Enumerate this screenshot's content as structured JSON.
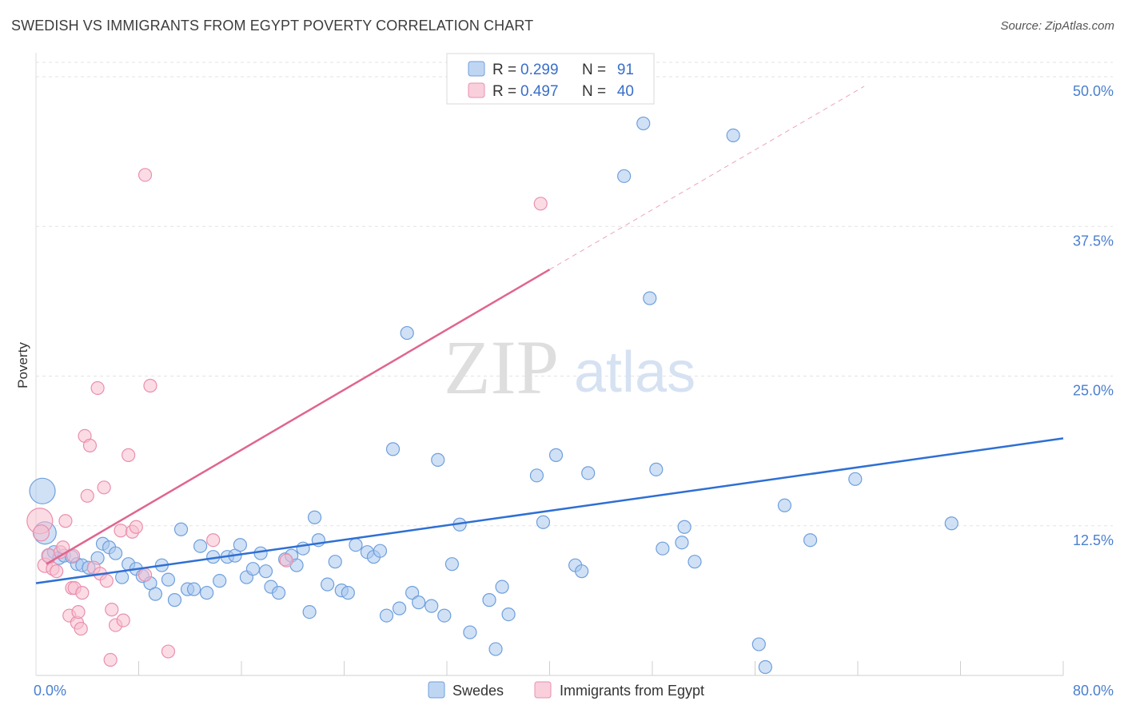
{
  "title": "SWEDISH VS IMMIGRANTS FROM EGYPT POVERTY CORRELATION CHART",
  "source": "Source: ZipAtlas.com",
  "watermark": {
    "zip": "ZIP",
    "atlas": "atlas"
  },
  "colors": {
    "swedes_fill": "#a9c8ef",
    "swedes_stroke": "#6f9fdc",
    "swedes_line": "#2e6fd4",
    "egypt_fill": "#f7bfd0",
    "egypt_stroke": "#ea8fae",
    "egypt_line": "#e0658f",
    "grid": "#e3e3e3",
    "tick_label": "#4a7fcf"
  },
  "legend": {
    "rows": [
      {
        "r_label": "R =",
        "r_value": "0.299",
        "n_label": "N =",
        "n_value": "91"
      },
      {
        "r_label": "R =",
        "r_value": "0.497",
        "n_label": "N =",
        "n_value": "40"
      }
    ]
  },
  "chart_data": {
    "type": "scatter",
    "ylabel": "Poverty",
    "x_tick_labels": [
      "0.0%",
      "80.0%"
    ],
    "y_tick_labels": [
      "12.5%",
      "25.0%",
      "37.5%",
      "50.0%"
    ],
    "y_ticks": [
      12.5,
      25.0,
      37.5,
      50.0
    ],
    "xlim": [
      0,
      80
    ],
    "ylim": [
      0,
      50
    ],
    "legend_position": "top-center",
    "grid": true,
    "series": [
      {
        "name": "Swedes",
        "trend": {
          "x": [
            0,
            80
          ],
          "y": [
            7.7,
            19.8
          ],
          "dashed_extension": false
        },
        "points": [
          [
            0.5,
            15.4,
            16
          ],
          [
            0.7,
            11.9,
            14
          ],
          [
            1.0,
            10.0,
            8
          ],
          [
            1.4,
            10.3,
            8
          ],
          [
            1.8,
            9.8,
            8
          ],
          [
            2.2,
            10.0,
            8
          ],
          [
            2.8,
            9.9,
            8
          ],
          [
            3.2,
            9.3,
            8
          ],
          [
            3.6,
            9.2,
            8
          ],
          [
            4.1,
            9.0,
            8
          ],
          [
            4.8,
            9.8,
            8
          ],
          [
            5.2,
            11.0,
            8
          ],
          [
            5.7,
            10.7,
            8
          ],
          [
            6.2,
            10.2,
            8
          ],
          [
            6.7,
            8.2,
            8
          ],
          [
            7.2,
            9.3,
            8
          ],
          [
            7.8,
            8.9,
            8
          ],
          [
            8.3,
            8.3,
            8
          ],
          [
            8.9,
            7.7,
            8
          ],
          [
            9.3,
            6.8,
            8
          ],
          [
            9.8,
            9.2,
            8
          ],
          [
            10.3,
            8.0,
            8
          ],
          [
            10.8,
            6.3,
            8
          ],
          [
            11.3,
            12.2,
            8
          ],
          [
            11.8,
            7.2,
            8
          ],
          [
            12.3,
            7.2,
            8
          ],
          [
            12.8,
            10.8,
            8
          ],
          [
            13.3,
            6.9,
            8
          ],
          [
            13.8,
            9.9,
            8
          ],
          [
            14.3,
            7.9,
            8
          ],
          [
            14.9,
            9.9,
            8
          ],
          [
            15.5,
            10.0,
            8
          ],
          [
            15.9,
            10.9,
            8
          ],
          [
            16.4,
            8.2,
            8
          ],
          [
            16.9,
            8.9,
            8
          ],
          [
            17.5,
            10.2,
            8
          ],
          [
            17.9,
            8.7,
            8
          ],
          [
            18.3,
            7.4,
            8
          ],
          [
            18.9,
            6.9,
            8
          ],
          [
            19.4,
            9.7,
            8
          ],
          [
            19.9,
            10.0,
            8
          ],
          [
            20.3,
            9.2,
            8
          ],
          [
            20.8,
            10.6,
            8
          ],
          [
            21.3,
            5.3,
            8
          ],
          [
            21.7,
            13.2,
            8
          ],
          [
            22.0,
            11.3,
            8
          ],
          [
            22.7,
            7.6,
            8
          ],
          [
            23.3,
            9.5,
            8
          ],
          [
            23.8,
            7.1,
            8
          ],
          [
            24.3,
            6.9,
            8
          ],
          [
            24.9,
            10.9,
            8
          ],
          [
            25.8,
            10.3,
            8
          ],
          [
            26.3,
            9.9,
            8
          ],
          [
            26.8,
            10.4,
            8
          ],
          [
            27.3,
            5.0,
            8
          ],
          [
            27.8,
            18.9,
            8
          ],
          [
            28.3,
            5.6,
            8
          ],
          [
            28.9,
            28.6,
            8
          ],
          [
            29.3,
            6.9,
            8
          ],
          [
            29.8,
            6.1,
            8
          ],
          [
            30.8,
            5.8,
            8
          ],
          [
            31.3,
            18.0,
            8
          ],
          [
            31.8,
            5.0,
            8
          ],
          [
            32.4,
            9.3,
            8
          ],
          [
            33.0,
            12.6,
            8
          ],
          [
            33.8,
            3.6,
            8
          ],
          [
            35.3,
            6.3,
            8
          ],
          [
            35.8,
            2.2,
            8
          ],
          [
            36.3,
            7.4,
            8
          ],
          [
            36.8,
            5.1,
            8
          ],
          [
            39.0,
            16.7,
            8
          ],
          [
            39.5,
            12.8,
            8
          ],
          [
            40.5,
            18.4,
            8
          ],
          [
            42.0,
            9.2,
            8
          ],
          [
            42.5,
            8.7,
            8
          ],
          [
            43.0,
            16.9,
            8
          ],
          [
            45.8,
            41.7,
            8
          ],
          [
            47.3,
            46.1,
            8
          ],
          [
            47.8,
            31.5,
            8
          ],
          [
            48.3,
            17.2,
            8
          ],
          [
            48.8,
            10.6,
            8
          ],
          [
            50.3,
            11.1,
            8
          ],
          [
            50.5,
            12.4,
            8
          ],
          [
            51.3,
            9.5,
            8
          ],
          [
            54.3,
            45.1,
            8
          ],
          [
            56.3,
            2.6,
            8
          ],
          [
            56.8,
            0.7,
            8
          ],
          [
            58.3,
            14.2,
            8
          ],
          [
            60.3,
            11.3,
            8
          ],
          [
            63.8,
            16.4,
            8
          ],
          [
            71.3,
            12.7,
            8
          ]
        ]
      },
      {
        "name": "Immigrants from Egypt",
        "trend": {
          "x": [
            0.8,
            40.0
          ],
          "y": [
            9.3,
            33.9
          ],
          "dashed_extension": {
            "x": [
              40.0,
              64.5
            ],
            "y": [
              33.9,
              49.2
            ]
          }
        },
        "points": [
          [
            0.3,
            12.9,
            16
          ],
          [
            0.4,
            11.9,
            10
          ],
          [
            0.7,
            9.2,
            9
          ],
          [
            1.0,
            10.0,
            9
          ],
          [
            1.3,
            8.9,
            8
          ],
          [
            1.6,
            8.7,
            8
          ],
          [
            1.9,
            10.3,
            8
          ],
          [
            2.1,
            10.7,
            8
          ],
          [
            2.3,
            12.9,
            8
          ],
          [
            2.6,
            5.0,
            8
          ],
          [
            2.8,
            7.3,
            8
          ],
          [
            3.0,
            7.3,
            8
          ],
          [
            3.2,
            4.4,
            8
          ],
          [
            3.3,
            5.3,
            8
          ],
          [
            3.5,
            3.9,
            8
          ],
          [
            3.6,
            6.9,
            8
          ],
          [
            3.8,
            20.0,
            8
          ],
          [
            4.0,
            15.0,
            8
          ],
          [
            4.2,
            19.2,
            8
          ],
          [
            4.5,
            9.0,
            8
          ],
          [
            4.8,
            24.0,
            8
          ],
          [
            5.0,
            8.5,
            8
          ],
          [
            5.3,
            15.7,
            8
          ],
          [
            5.5,
            7.9,
            8
          ],
          [
            5.8,
            1.3,
            8
          ],
          [
            5.9,
            5.5,
            8
          ],
          [
            6.2,
            4.2,
            8
          ],
          [
            6.6,
            12.1,
            8
          ],
          [
            6.8,
            4.6,
            8
          ],
          [
            7.2,
            18.4,
            8
          ],
          [
            7.5,
            12.0,
            8
          ],
          [
            7.8,
            12.4,
            8
          ],
          [
            8.5,
            8.4,
            8
          ],
          [
            8.5,
            41.8,
            8
          ],
          [
            8.9,
            24.2,
            8
          ],
          [
            10.3,
            2.0,
            8
          ],
          [
            13.8,
            11.3,
            8
          ],
          [
            19.5,
            9.6,
            8
          ],
          [
            39.3,
            39.4,
            8
          ],
          [
            2.9,
            10.0,
            8
          ]
        ]
      }
    ]
  },
  "bottom_legend": [
    {
      "label": "Swedes"
    },
    {
      "label": "Immigrants from Egypt"
    }
  ]
}
